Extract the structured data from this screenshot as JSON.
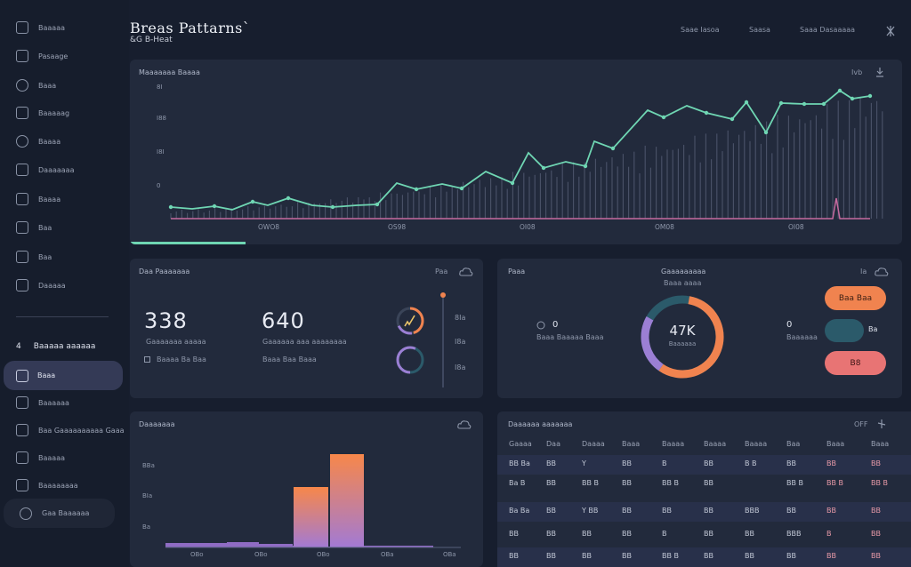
{
  "header": {
    "title": "Breas Pattarns`",
    "subtitle": "&G B-Heat"
  },
  "topnav": [
    "Saae Iasoa",
    "Saasa",
    "Saaa Dasaaaaa"
  ],
  "sidebar": {
    "items": [
      {
        "label": "Baaaaa",
        "icon": "document-icon"
      },
      {
        "label": "Pasaage",
        "icon": "tablet-icon"
      },
      {
        "label": "Baaa",
        "icon": "circle-icon"
      },
      {
        "label": "Baaaaag",
        "icon": "bar-chart-icon"
      },
      {
        "label": "Baaaa",
        "icon": "camera-icon"
      },
      {
        "label": "Daaaaaaa",
        "icon": "monitor-icon"
      },
      {
        "label": "Baaaa",
        "icon": "users-icon"
      },
      {
        "label": "Baa",
        "icon": "list-icon"
      },
      {
        "label": "Baa",
        "icon": "puzzle-icon"
      },
      {
        "label": "Daaaaa",
        "icon": "menu-icon"
      }
    ],
    "section": {
      "num": "4",
      "label": "Baaaaa aaaaaa"
    },
    "items2": [
      {
        "label": "Baaa",
        "icon": "folder-icon"
      },
      {
        "label": "Baaaaaa",
        "icon": "tag-icon"
      },
      {
        "label": "Baa Gaaaaaaaaaa Gaaa",
        "icon": "screen-icon"
      },
      {
        "label": "Baaaaa",
        "icon": "stack-icon"
      },
      {
        "label": "Baaaaaaaa",
        "icon": "calendar-icon"
      },
      {
        "label": "Gaa Baaaaaa",
        "icon": "gear-icon"
      }
    ]
  },
  "main_chart": {
    "title": "Maaaaaaa Baaaa",
    "ticks": [
      "8I",
      "I88",
      "I8I",
      "0"
    ],
    "xlabels": [
      "OWO8",
      "OS98",
      "OI08",
      "OM08",
      "OI08"
    ],
    "menu": "Ivb"
  },
  "stats": {
    "title": "Daa Paaaaaaa",
    "action": "Paa",
    "a_value": "338",
    "a_label": "Gaaaaaaa  aaaaa",
    "a_sub": "Baaaa  Ba  Baa",
    "b_value": "640",
    "b_label": "Gaaaaaa  aaa  aaaaaaaa",
    "b_sub": "Baaa  Baa  Baaa",
    "scale": [
      "8Ia",
      "I8a",
      "I8a"
    ]
  },
  "donut": {
    "title": "Paaa",
    "heading": "Gaaaaaaaaa",
    "sub": "Baaa aaaa",
    "menu": "Ia",
    "center": "47K",
    "center_sub": "Baaaaaa",
    "left_val": "0",
    "left_label": "Baaa Baaaaa Baaa",
    "right_val": "0",
    "right_label": "Baaaaaa",
    "btn1": "Baa Baa",
    "btn2": "Ba",
    "btn3": "B8",
    "colors": {
      "orange": "#f0834f",
      "purple": "#9b7fd4",
      "teal": "#2b5a6a",
      "pink": "#e87474"
    }
  },
  "bars": {
    "title": "Daaaaaaa",
    "ticks": [
      "BBa",
      "BIa",
      "Ba"
    ],
    "xlabels": [
      "OBo",
      "OBo",
      "OBo",
      "OBa",
      "OBa"
    ]
  },
  "table": {
    "title": "Daaaaaa aaaaaaa",
    "menu": "OFF",
    "headers": [
      "Gaaaa",
      "Daa",
      "Daaaa",
      "Baaa",
      "Baaaa",
      "Baaaa",
      "Baaaa",
      "Baa",
      "Baaa",
      "Baaa"
    ],
    "rows": [
      [
        "BB Ba",
        "BB",
        "Y",
        "BB",
        "B",
        "BB",
        "B B",
        "BB",
        "BB",
        "BB"
      ],
      [
        "Ba B",
        "BB",
        "BB B",
        "BB",
        "BB B",
        "BB",
        "",
        "BB B",
        "BB B",
        "BB B"
      ],
      [
        "Ba Ba",
        "BB",
        "Y BB",
        "BB",
        "BB",
        "BB",
        "BBB",
        "BB",
        "BB",
        "BB"
      ],
      [
        "BB",
        "BB",
        "BB",
        "BB",
        "B",
        "BB",
        "BB",
        "BBB",
        "B",
        "BB"
      ],
      [
        "BB",
        "BB",
        "BB",
        "BB",
        "BB B",
        "BB",
        "BB",
        "BB",
        "BB",
        "BB"
      ]
    ]
  }
}
